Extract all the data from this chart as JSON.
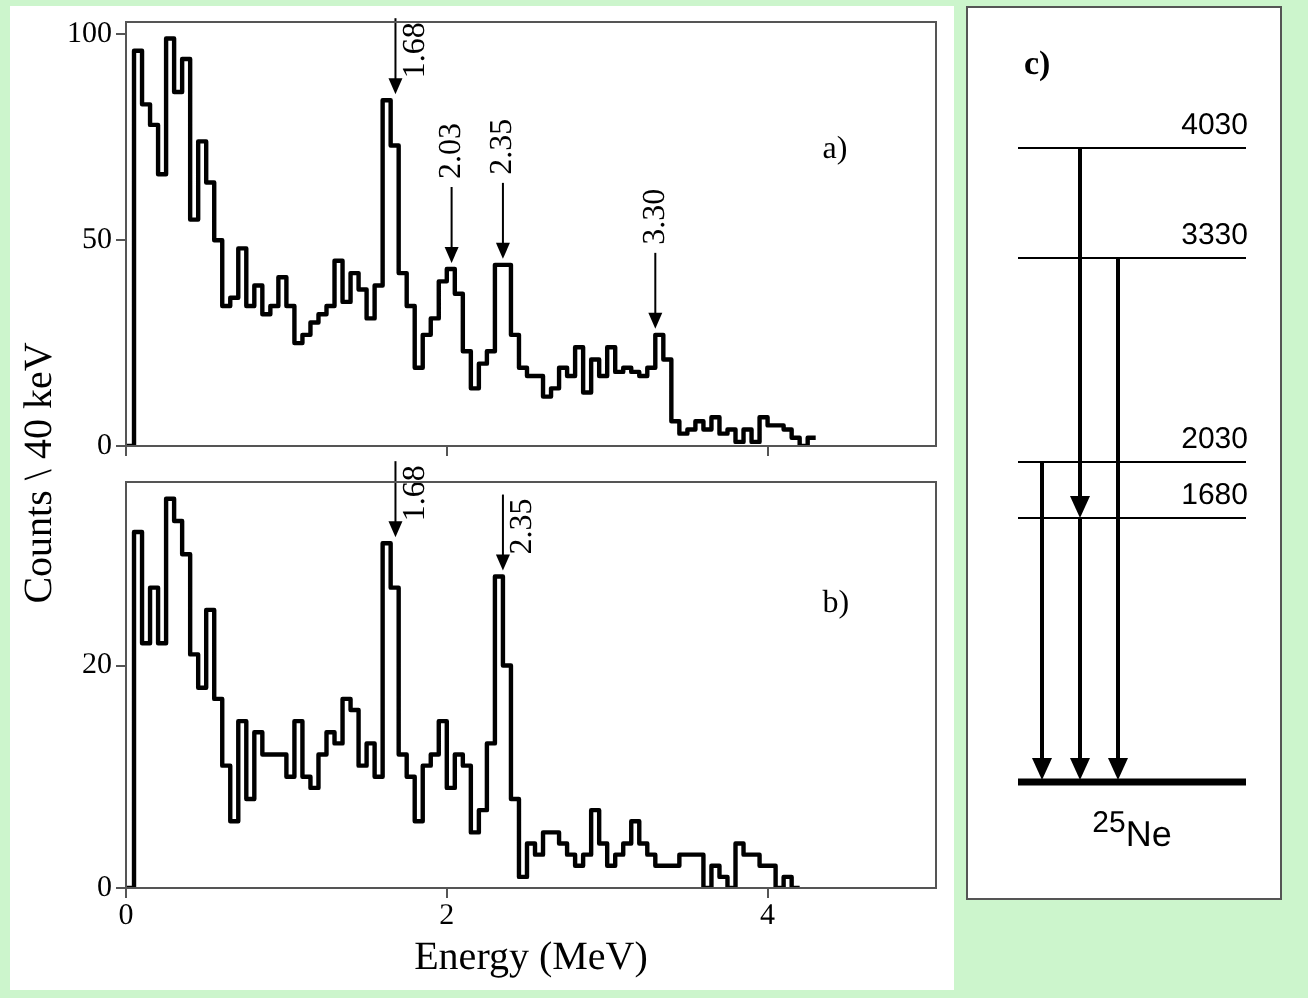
{
  "chart_data": [
    {
      "type": "histogram",
      "ylabel": "Counts \\ 40 keV",
      "xlim": [
        0,
        5.05
      ],
      "xticks": [
        0,
        2,
        4
      ],
      "ylim": [
        0,
        103
      ],
      "yticks": [
        0,
        50,
        100
      ],
      "tick_labels": "y",
      "color": "#000000",
      "bins": [
        0,
        0.05,
        0.1,
        0.15,
        0.2,
        0.25,
        0.3,
        0.35,
        0.4,
        0.45,
        0.5,
        0.55,
        0.6,
        0.65,
        0.7,
        0.75,
        0.8,
        0.85,
        0.9,
        0.95,
        1,
        1.05,
        1.1,
        1.15,
        1.2,
        1.25,
        1.3,
        1.35,
        1.4,
        1.45,
        1.5,
        1.55,
        1.6,
        1.65,
        1.7,
        1.75,
        1.8,
        1.85,
        1.9,
        1.95,
        2,
        2.05,
        2.1,
        2.15,
        2.2,
        2.25,
        2.3,
        2.35,
        2.4,
        2.45,
        2.5,
        2.55,
        2.6,
        2.65,
        2.7,
        2.75,
        2.8,
        2.85,
        2.9,
        2.95,
        3,
        3.05,
        3.1,
        3.15,
        3.2,
        3.25,
        3.3,
        3.35,
        3.4,
        3.45,
        3.5,
        3.55,
        3.6,
        3.65,
        3.7,
        3.75,
        3.8,
        3.85,
        3.9,
        3.95,
        4,
        4.05,
        4.1,
        4.15,
        4.2,
        4.25,
        4.3
      ],
      "values": [
        0,
        96,
        83,
        78,
        66,
        99,
        86,
        94,
        55,
        74,
        64,
        50,
        34,
        36,
        48,
        34,
        39,
        32,
        34,
        41,
        34,
        25,
        27,
        30,
        32,
        34,
        45,
        35,
        42,
        38,
        31,
        39,
        84,
        73,
        42,
        34,
        19,
        27,
        31,
        40,
        43,
        37,
        23,
        14,
        20,
        23,
        44,
        44,
        27,
        19,
        17,
        17,
        12,
        14,
        19,
        17,
        24,
        13,
        21,
        17,
        24,
        18,
        19,
        18,
        17,
        19,
        27,
        21,
        6,
        3,
        4,
        6,
        4,
        7,
        3,
        4,
        1,
        4,
        1,
        7,
        5,
        5,
        4,
        2,
        0,
        2
      ],
      "annotations": [
        {
          "text": "1.68",
          "x": 1.68,
          "y": 84
        },
        {
          "text": "2.03",
          "x": 2.03,
          "y": 43
        },
        {
          "text": "2.35",
          "x": 2.35,
          "y": 44
        },
        {
          "text": "3.30",
          "x": 3.3,
          "y": 27
        },
        "a)"
      ]
    },
    {
      "type": "histogram",
      "xlabel": "Energy (MeV)",
      "xlim": [
        0,
        5.05
      ],
      "xticks": [
        0,
        2,
        4
      ],
      "ylim": [
        0,
        36.5
      ],
      "yticks": [
        0,
        20
      ],
      "color": "#000000",
      "bins": [
        0,
        0.05,
        0.1,
        0.15,
        0.2,
        0.25,
        0.3,
        0.35,
        0.4,
        0.45,
        0.5,
        0.55,
        0.6,
        0.65,
        0.7,
        0.75,
        0.8,
        0.85,
        0.9,
        0.95,
        1,
        1.05,
        1.1,
        1.15,
        1.2,
        1.25,
        1.3,
        1.35,
        1.4,
        1.45,
        1.5,
        1.55,
        1.6,
        1.65,
        1.7,
        1.75,
        1.8,
        1.85,
        1.9,
        1.95,
        2,
        2.05,
        2.1,
        2.15,
        2.2,
        2.25,
        2.3,
        2.35,
        2.4,
        2.45,
        2.5,
        2.55,
        2.6,
        2.65,
        2.7,
        2.75,
        2.8,
        2.85,
        2.9,
        2.95,
        3,
        3.05,
        3.1,
        3.15,
        3.2,
        3.25,
        3.3,
        3.35,
        3.4,
        3.45,
        3.5,
        3.55,
        3.6,
        3.65,
        3.7,
        3.75,
        3.8,
        3.85,
        3.9,
        3.95,
        4,
        4.05,
        4.1,
        4.15,
        4.2
      ],
      "values": [
        0,
        32,
        22,
        27,
        22,
        35,
        33,
        30,
        21,
        18,
        25,
        17,
        11,
        6,
        15,
        8,
        14,
        12,
        12,
        12,
        10,
        15,
        10,
        9,
        12,
        14,
        13,
        17,
        16,
        11,
        13,
        10,
        31,
        27,
        12,
        10,
        6,
        11,
        12,
        15,
        9,
        12,
        11,
        5,
        7,
        13,
        28,
        20,
        8,
        1,
        4,
        3,
        5,
        5,
        4,
        3,
        2,
        3,
        7,
        4,
        2,
        3,
        4,
        6,
        4,
        3,
        2,
        2,
        2,
        3,
        3,
        3,
        0,
        2,
        1,
        0,
        4,
        3,
        3,
        2,
        2,
        0,
        1,
        0
      ],
      "annotations": [
        {
          "text": "1.68",
          "x": 1.68,
          "y": 31
        },
        {
          "text": "2.35",
          "x": 2.35,
          "y": 28
        },
        "b)"
      ]
    },
    {
      "type": "other",
      "title": "c)",
      "annotations": [
        "4030",
        "3330",
        "2030",
        "1680",
        "$^{25}$Ne"
      ]
    }
  ]
}
